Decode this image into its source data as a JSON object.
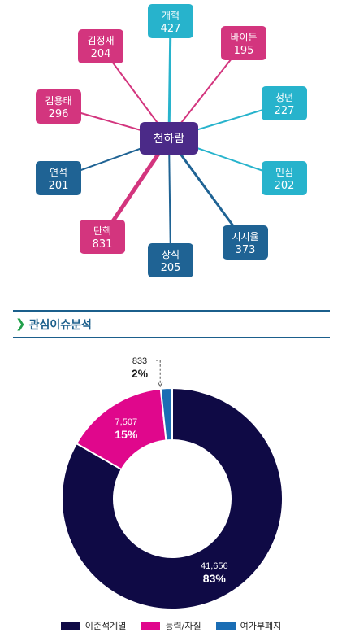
{
  "network": {
    "center": {
      "label": "천하람",
      "color": "#4b2a88"
    },
    "nodes": [
      {
        "label": "개혁",
        "value": "427",
        "color": "#27b3cc"
      },
      {
        "label": "바이든",
        "value": "195",
        "color": "#d3357e"
      },
      {
        "label": "청년",
        "value": "227",
        "color": "#27b3cc"
      },
      {
        "label": "민심",
        "value": "202",
        "color": "#27b3cc"
      },
      {
        "label": "지지율",
        "value": "373",
        "color": "#1f6394"
      },
      {
        "label": "상식",
        "value": "205",
        "color": "#1f6394"
      },
      {
        "label": "탄핵",
        "value": "831",
        "color": "#d3357e"
      },
      {
        "label": "연석",
        "value": "201",
        "color": "#1f6394"
      },
      {
        "label": "김용태",
        "value": "296",
        "color": "#d3357e"
      },
      {
        "label": "김정재",
        "value": "204",
        "color": "#d3357e"
      }
    ]
  },
  "section": {
    "title": "관심이슈분석"
  },
  "chart_data": {
    "type": "pie",
    "categories": [
      "이준석계열",
      "능력/자질",
      "여가부폐지"
    ],
    "values": [
      41656,
      7507,
      833
    ],
    "value_labels": [
      "41,656",
      "7,507",
      "833"
    ],
    "percent_labels": [
      "83%",
      "15%",
      "2%"
    ],
    "colors": [
      "#0f0a45",
      "#e0078c",
      "#1a6db4"
    ],
    "legend_position": "bottom"
  }
}
